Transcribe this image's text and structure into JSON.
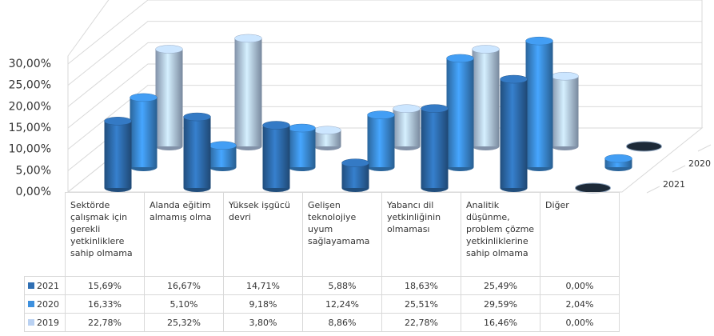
{
  "chart_data": {
    "type": "bar3d",
    "categories": [
      "Sektörde çalışmak için gerekli yetkinliklere sahip olmama",
      "Alanda eğitim almamış olma",
      "Yüksek işgücü devri",
      "Gelişen teknolojiye uyum sağlayamama",
      "Yabancı dil yetkinliğinin olmaması",
      "Analitik düşünme, problem çözme yetkinliklerine sahip olmama",
      "Diğer"
    ],
    "series": [
      {
        "name": "2021",
        "color": "#2f6fb3",
        "values": [
          15.69,
          16.67,
          14.71,
          5.88,
          18.63,
          25.49,
          0.0
        ],
        "value_labels": [
          "15,69%",
          "16,67%",
          "14,71%",
          "5,88%",
          "18,63%",
          "25,49%",
          "0,00%"
        ]
      },
      {
        "name": "2020",
        "color": "#3d90de",
        "values": [
          16.33,
          5.1,
          9.18,
          12.24,
          25.51,
          29.59,
          2.04
        ],
        "value_labels": [
          "16,33%",
          "5,10%",
          "9,18%",
          "12,24%",
          "25,51%",
          "29,59%",
          "2,04%"
        ]
      },
      {
        "name": "2019",
        "color": "#b9d1f2",
        "values": [
          22.78,
          25.32,
          3.8,
          8.86,
          22.78,
          16.46,
          0.0
        ],
        "value_labels": [
          "22,78%",
          "25,32%",
          "3,80%",
          "8,86%",
          "22,78%",
          "16,46%",
          "0,00%"
        ]
      }
    ],
    "ylim": [
      0,
      30
    ],
    "yticks": [
      {
        "value": 0,
        "label": "0,00%"
      },
      {
        "value": 5,
        "label": "5,00%"
      },
      {
        "value": 10,
        "label": "10,00%"
      },
      {
        "value": 15,
        "label": "15,00%"
      },
      {
        "value": 20,
        "label": "20,00%"
      },
      {
        "value": 25,
        "label": "25,00%"
      },
      {
        "value": 30,
        "label": "30,00%"
      }
    ],
    "grid": true
  }
}
